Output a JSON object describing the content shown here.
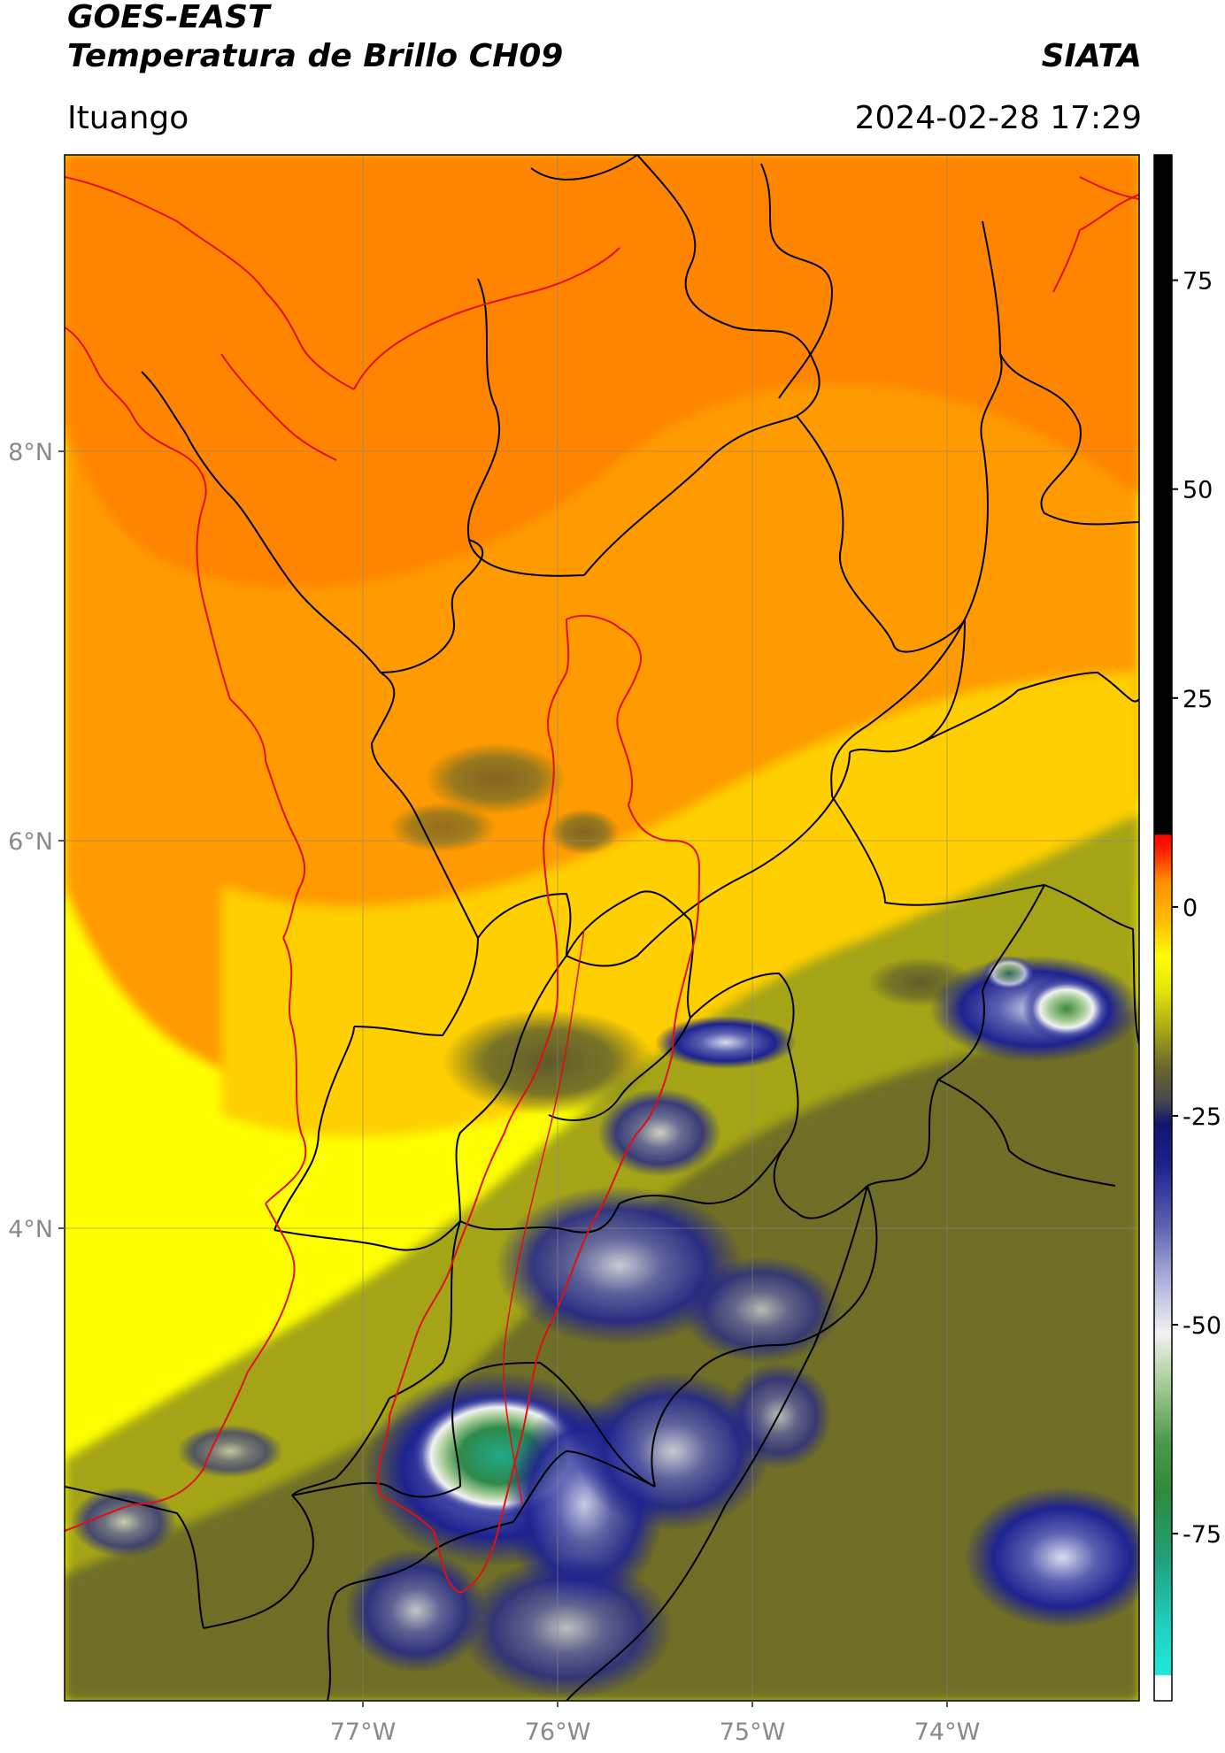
{
  "header": {
    "satellite": "GOES-EAST",
    "product": "Temperatura de Brillo CH09",
    "organization": "SIATA",
    "location": "Ituango",
    "datetime": "2024-02-28 17:29"
  },
  "map": {
    "lat_range": [
      1.5,
      9.5
    ],
    "lon_range": [
      -78.5,
      -73.0
    ],
    "lat_ticks": [
      {
        "value": 8,
        "label": "8°N"
      },
      {
        "value": 6,
        "label": "6°N"
      },
      {
        "value": 4,
        "label": "4°N"
      }
    ],
    "lon_ticks": [
      {
        "value": -77,
        "label": "77°W"
      },
      {
        "value": -76,
        "label": "76°W"
      },
      {
        "value": -75,
        "label": "75°W"
      },
      {
        "value": -74,
        "label": "74°W"
      }
    ],
    "gridlines": true,
    "coastline_color": "#e01010",
    "boundary_color": "#000000",
    "basin_outline_color": "#e01010"
  },
  "colorbar": {
    "range": [
      -95,
      90
    ],
    "ticks": [
      "75",
      "50",
      "25",
      "0",
      "-25",
      "-50",
      "-75"
    ],
    "tick_values": [
      75,
      50,
      25,
      0,
      -25,
      -50,
      -75
    ],
    "stops": [
      {
        "value": -95,
        "color": "#ffffff"
      },
      {
        "value": -92,
        "color": "#ffffff"
      },
      {
        "value": -91.9,
        "color": "#20e8d8"
      },
      {
        "value": -86,
        "color": "#20d0c0"
      },
      {
        "value": -78,
        "color": "#20a078"
      },
      {
        "value": -70,
        "color": "#2e8a3a"
      },
      {
        "value": -64,
        "color": "#4c9a4a"
      },
      {
        "value": -57,
        "color": "#a8cc98"
      },
      {
        "value": -51,
        "color": "#f2f2f2"
      },
      {
        "value": -45,
        "color": "#b0b4dc"
      },
      {
        "value": -38,
        "color": "#5a60b0"
      },
      {
        "value": -31,
        "color": "#1e2290"
      },
      {
        "value": -26,
        "color": "#101470"
      },
      {
        "value": -23,
        "color": "#4a4a4a"
      },
      {
        "value": -19,
        "color": "#6a6a2a"
      },
      {
        "value": -15,
        "color": "#a4a418"
      },
      {
        "value": -10,
        "color": "#e4e40a"
      },
      {
        "value": -6,
        "color": "#ffff00"
      },
      {
        "value": -2,
        "color": "#ffc000"
      },
      {
        "value": 3,
        "color": "#ff9000"
      },
      {
        "value": 7,
        "color": "#ff1800"
      },
      {
        "value": 8.6,
        "color": "#ff0000"
      },
      {
        "value": 8.7,
        "color": "#000000"
      },
      {
        "value": 90,
        "color": "#000000"
      }
    ]
  }
}
